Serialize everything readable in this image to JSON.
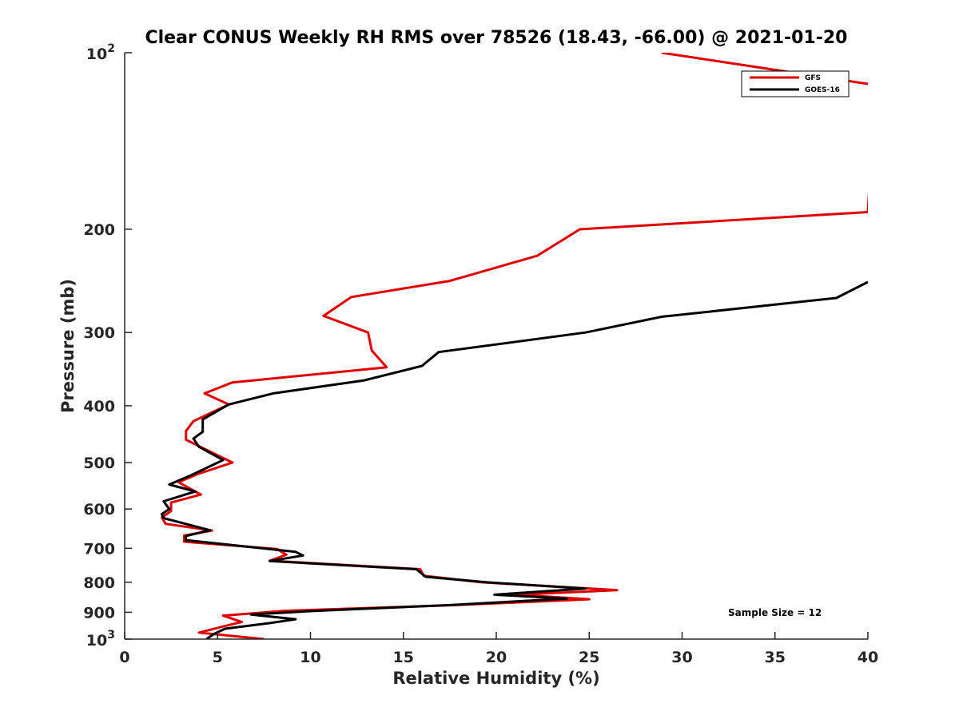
{
  "chart_data": {
    "type": "line",
    "title": "Clear CONUS Weekly RH RMS over 78526 (18.43, -66.00) @ 2021-01-20",
    "xlabel": "Relative Humidity (%)",
    "ylabel": "Pressure (mb)",
    "xlim": [
      0,
      40
    ],
    "ylim": [
      100,
      1000
    ],
    "y_scale": "log",
    "y_reversed": true,
    "x_ticks": [
      0,
      5,
      10,
      15,
      20,
      25,
      30,
      35,
      40
    ],
    "y_ticks": [
      200,
      300,
      400,
      500,
      600,
      700,
      800,
      900
    ],
    "y_tick_special": {
      "top": {
        "base": "10",
        "exp": "2"
      },
      "bottom": {
        "base": "10",
        "exp": "3"
      }
    },
    "grid": false,
    "legend_position": "top-right",
    "annotation": "Sample Size = 12",
    "series": [
      {
        "name": "GFS",
        "color": "#e00000",
        "points": [
          [
            28.9,
            100
          ],
          [
            40,
            113
          ],
          [
            40.4,
            112
          ],
          [
            40,
            187
          ],
          [
            24.5,
            200
          ],
          [
            22.2,
            222
          ],
          [
            17.5,
            245
          ],
          [
            12.2,
            261
          ],
          [
            10.7,
            281
          ],
          [
            13.1,
            300
          ],
          [
            13.3,
            322
          ],
          [
            14.1,
            344
          ],
          [
            5.8,
            365
          ],
          [
            4.3,
            381
          ],
          [
            5.6,
            398
          ],
          [
            3.7,
            425
          ],
          [
            3.3,
            442
          ],
          [
            3.3,
            457
          ],
          [
            3.9,
            467
          ],
          [
            5.8,
            500
          ],
          [
            4,
            522
          ],
          [
            2.9,
            540
          ],
          [
            4.1,
            567
          ],
          [
            2.5,
            585
          ],
          [
            2.5,
            605
          ],
          [
            2,
            620
          ],
          [
            2.2,
            636
          ],
          [
            4.7,
            653
          ],
          [
            3.2,
            666
          ],
          [
            3.2,
            682
          ],
          [
            8.2,
            702
          ],
          [
            8.7,
            718
          ],
          [
            7.8,
            735
          ],
          [
            15.9,
            760
          ],
          [
            16.1,
            780
          ],
          [
            19.2,
            800
          ],
          [
            26.5,
            825
          ],
          [
            21.1,
            840
          ],
          [
            25,
            855
          ],
          [
            17.8,
            875
          ],
          [
            8.6,
            895
          ],
          [
            5.3,
            912
          ],
          [
            6.3,
            935
          ],
          [
            5.4,
            950
          ],
          [
            4,
            975
          ],
          [
            7.5,
            1000
          ]
        ]
      },
      {
        "name": "GOES-16",
        "color": "#000000",
        "points": [
          [
            40,
            246
          ],
          [
            38.3,
            262
          ],
          [
            28.9,
            282
          ],
          [
            24.8,
            300
          ],
          [
            16.9,
            324
          ],
          [
            16,
            342
          ],
          [
            12.9,
            362
          ],
          [
            8,
            381
          ],
          [
            5.6,
            398
          ],
          [
            4.2,
            422
          ],
          [
            4.2,
            443
          ],
          [
            3.7,
            455
          ],
          [
            4,
            470
          ],
          [
            5.3,
            495
          ],
          [
            3.6,
            525
          ],
          [
            2.4,
            545
          ],
          [
            3.8,
            560
          ],
          [
            2.1,
            582
          ],
          [
            2.4,
            600
          ],
          [
            2,
            612
          ],
          [
            2.1,
            622
          ],
          [
            4.6,
            652
          ],
          [
            3.3,
            667
          ],
          [
            3.3,
            678
          ],
          [
            9.2,
            710
          ],
          [
            9.6,
            720
          ],
          [
            7.8,
            736
          ],
          [
            15.7,
            760
          ],
          [
            16.2,
            783
          ],
          [
            19.5,
            800
          ],
          [
            24.8,
            820
          ],
          [
            19.9,
            840
          ],
          [
            23.8,
            853
          ],
          [
            17.5,
            875
          ],
          [
            10.3,
            895
          ],
          [
            6.8,
            908
          ],
          [
            9.2,
            925
          ],
          [
            7.7,
            940
          ],
          [
            5.4,
            960
          ],
          [
            4.8,
            980
          ],
          [
            4.4,
            1000
          ]
        ]
      }
    ]
  }
}
